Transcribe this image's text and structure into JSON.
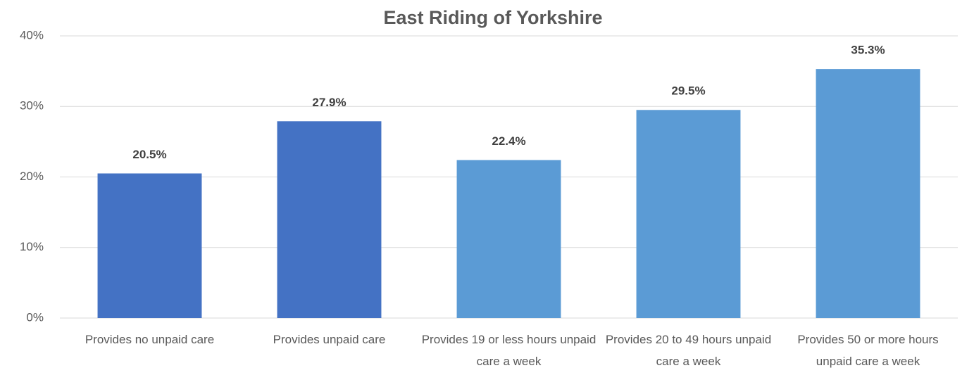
{
  "chart_data": {
    "type": "bar",
    "title": "East Riding of Yorkshire",
    "categories": [
      "Provides no unpaid care",
      "Provides unpaid care",
      "Provides 19 or less hours unpaid care a week",
      "Provides 20 to 49 hours unpaid care a week",
      "Provides 50 or more hours unpaid care a week"
    ],
    "values": [
      20.5,
      27.9,
      22.4,
      29.5,
      35.3
    ],
    "value_labels": [
      "20.5%",
      "27.9%",
      "22.4%",
      "29.5%",
      "35.3%"
    ],
    "colors": [
      "#4472c4",
      "#4472c4",
      "#5b9bd5",
      "#5b9bd5",
      "#5b9bd5"
    ],
    "ylim": [
      0,
      40
    ],
    "yticks": [
      {
        "value": 0,
        "label": "0%"
      },
      {
        "value": 10,
        "label": "10%"
      },
      {
        "value": 20,
        "label": "20%"
      },
      {
        "value": 30,
        "label": "30%"
      },
      {
        "value": 40,
        "label": "40%"
      }
    ],
    "grid": true
  }
}
